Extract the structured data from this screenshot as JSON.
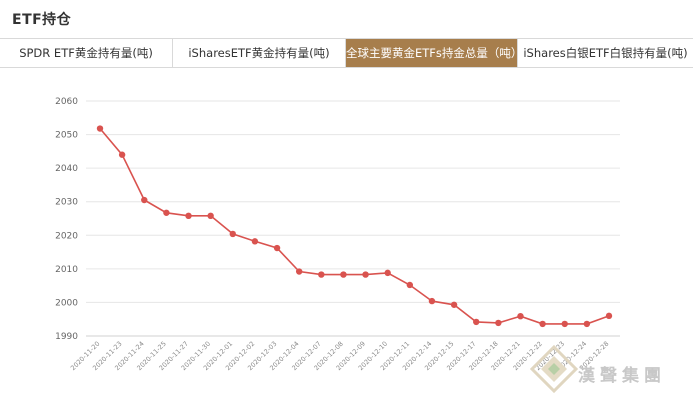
{
  "header": {
    "title": "ETF持仓"
  },
  "tabs": [
    {
      "label": "SPDR ETF黄金持有量(吨)",
      "active": false
    },
    {
      "label": "iSharesETF黄金持有量(吨)",
      "active": false
    },
    {
      "label": "全球主要黄金ETFs持金总量（吨）",
      "active": true
    },
    {
      "label": "iShares白银ETF白银持有量(吨)",
      "active": false
    }
  ],
  "colors": {
    "accent": "#a77e4c",
    "series": "#d9534f"
  },
  "watermark": {
    "text": "漢聲集團",
    "icon": "hansheng-logo-icon"
  },
  "chart_data": {
    "type": "line",
    "title": "",
    "xlabel": "",
    "ylabel": "",
    "ylim": [
      1990,
      2060
    ],
    "yticks": [
      1990,
      2000,
      2010,
      2020,
      2030,
      2040,
      2050,
      2060
    ],
    "grid": true,
    "x": [
      "2020-11-20",
      "2020-11-23",
      "2020-11-24",
      "2020-11-25",
      "2020-11-27",
      "2020-11-30",
      "2020-12-01",
      "2020-12-02",
      "2020-12-03",
      "2020-12-04",
      "2020-12-07",
      "2020-12-08",
      "2020-12-09",
      "2020-12-10",
      "2020-12-11",
      "2020-12-14",
      "2020-12-15",
      "2020-12-17",
      "2020-12-18",
      "2020-12-21",
      "2020-12-22",
      "2020-12-23",
      "2020-12-24",
      "2020-12-28"
    ],
    "series": [
      {
        "values": [
          2051.8,
          2044.0,
          2030.5,
          2026.7,
          2025.8,
          2025.8,
          2020.4,
          2018.2,
          2016.2,
          2009.2,
          2008.3,
          2008.3,
          2008.3,
          2008.8,
          2005.2,
          2000.4,
          1999.3,
          1994.2,
          1993.9,
          1995.9,
          1993.6,
          1993.6,
          1993.6,
          1996.0
        ]
      }
    ]
  }
}
